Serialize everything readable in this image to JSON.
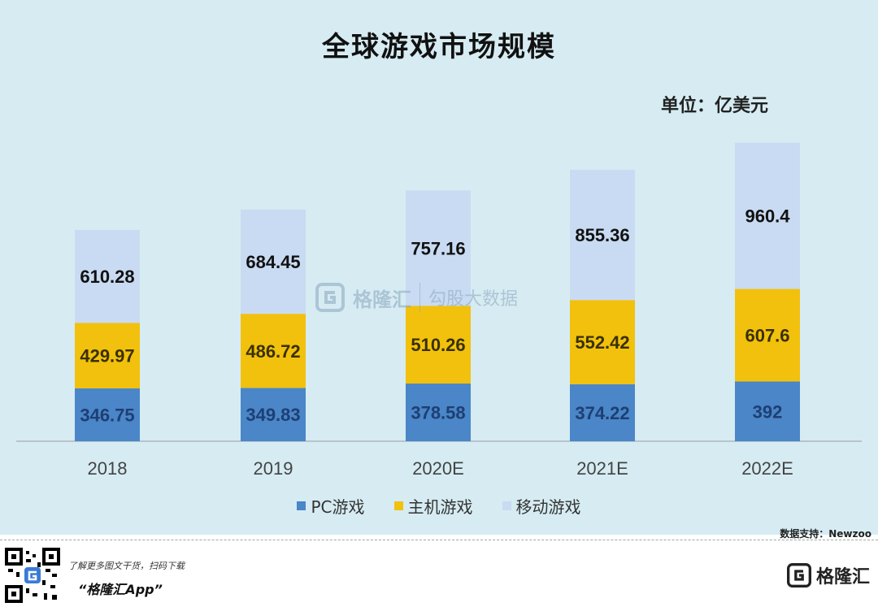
{
  "title": "全球游戏市场规模",
  "unit": "单位：亿美元",
  "source": "数据支持：Newzoo",
  "footer": {
    "note": "了解更多图文干货，扫码下载",
    "app": "“格隆汇App”",
    "brand": "格隆汇"
  },
  "watermark": {
    "brand": "格隆汇",
    "sub": "勾股大数据"
  },
  "colors": {
    "pc": "#4a86c8",
    "console": "#f1c10d",
    "mobile": "#c9dbf2",
    "background": "#d6ecf2"
  },
  "chart_data": {
    "type": "bar",
    "stacked": true,
    "categories": [
      "2018",
      "2019",
      "2020E",
      "2021E",
      "2022E"
    ],
    "series": [
      {
        "name": "PC游戏",
        "values": [
          346.75,
          349.83,
          378.58,
          374.22,
          392
        ]
      },
      {
        "name": "主机游戏",
        "values": [
          429.97,
          486.72,
          510.26,
          552.42,
          607.6
        ]
      },
      {
        "name": "移动游戏",
        "values": [
          610.28,
          684.45,
          757.16,
          855.36,
          960.4
        ]
      }
    ],
    "legend": "bottom",
    "grid": false
  }
}
